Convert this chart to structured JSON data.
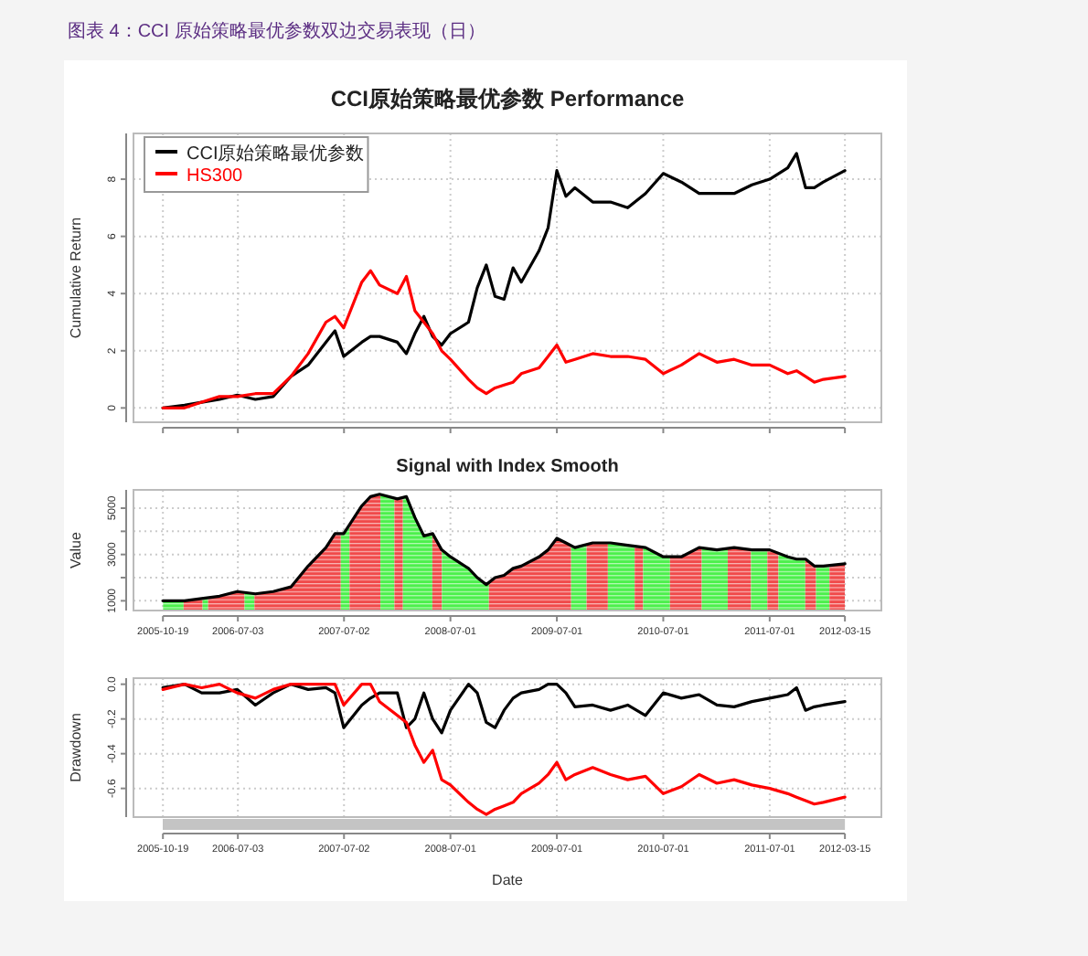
{
  "chart_data": [
    {
      "type": "line",
      "title": "CCI原始策略最优参数 Performance",
      "ylabel": "Cumulative Return",
      "annotations": [
        "图表 4：CCI 原始策略最优参数双边交易表现（日）"
      ],
      "x": [
        "2005-10-19",
        "2006-01",
        "2006-03",
        "2006-05",
        "2006-07",
        "2006-09",
        "2006-11",
        "2007-01",
        "2007-03",
        "2007-05",
        "2007-06",
        "2007-07",
        "2007-09",
        "2007-10",
        "2007-11",
        "2008-01",
        "2008-02",
        "2008-03",
        "2008-04",
        "2008-05",
        "2008-06",
        "2008-07",
        "2008-09",
        "2008-10",
        "2008-11",
        "2008-12",
        "2009-01",
        "2009-02",
        "2009-03",
        "2009-05",
        "2009-06",
        "2009-07",
        "2009-08",
        "2009-09",
        "2009-11",
        "2010-01",
        "2010-03",
        "2010-05",
        "2010-07",
        "2010-09",
        "2010-11",
        "2011-01",
        "2011-03",
        "2011-05",
        "2011-07",
        "2011-09",
        "2011-10",
        "2011-11",
        "2011-12",
        "2012-01",
        "2012-03-15"
      ],
      "series": [
        {
          "name": "CCI原始策略最优参数",
          "color": "#000000",
          "values": [
            0,
            0.1,
            0.2,
            0.3,
            0.45,
            0.3,
            0.4,
            1.1,
            1.5,
            2.3,
            2.7,
            1.8,
            2.3,
            2.5,
            2.5,
            2.3,
            1.9,
            2.6,
            3.2,
            2.5,
            2.2,
            2.6,
            3.0,
            4.2,
            5.0,
            3.9,
            3.8,
            4.9,
            4.4,
            5.5,
            6.3,
            8.3,
            7.4,
            7.7,
            7.2,
            7.2,
            7.0,
            7.5,
            8.2,
            7.9,
            7.5,
            7.5,
            7.5,
            7.8,
            8.0,
            8.4,
            8.9,
            7.7,
            7.7,
            7.9,
            8.3
          ]
        },
        {
          "name": "HS300",
          "color": "#ff0000",
          "values": [
            0,
            0,
            0.2,
            0.4,
            0.4,
            0.5,
            0.5,
            1.1,
            1.9,
            3.0,
            3.2,
            2.8,
            4.4,
            4.8,
            4.3,
            4.0,
            4.6,
            3.4,
            3.0,
            2.6,
            2.0,
            1.7,
            1.0,
            0.7,
            0.5,
            0.7,
            0.8,
            0.9,
            1.2,
            1.4,
            1.8,
            2.2,
            1.6,
            1.7,
            1.9,
            1.8,
            1.8,
            1.7,
            1.2,
            1.5,
            1.9,
            1.6,
            1.7,
            1.5,
            1.5,
            1.2,
            1.3,
            1.1,
            0.9,
            1.0,
            1.1
          ]
        }
      ],
      "xlim": [
        "2005-07-10",
        "2012-07-18"
      ],
      "xticks": [
        "2005-10-19",
        "2006-07-03",
        "2007-07-02",
        "2008-07-01",
        "2009-07-01",
        "2010-07-01",
        "2011-07-01",
        "2012-03-15"
      ],
      "ylim": [
        -0.5,
        9.6
      ],
      "yticks": [
        0,
        2,
        4,
        6,
        8
      ],
      "tick_labels": "y",
      "grid": true,
      "legend": "top left"
    },
    {
      "type": "area",
      "title": "Signal with Index Smooth",
      "ylabel": "Value",
      "x": [
        "2005-10-19",
        "2006-01",
        "2006-03",
        "2006-05",
        "2006-07",
        "2006-09",
        "2006-11",
        "2007-01",
        "2007-03",
        "2007-05",
        "2007-06",
        "2007-07",
        "2007-09",
        "2007-10",
        "2007-11",
        "2008-01",
        "2008-02",
        "2008-03",
        "2008-04",
        "2008-05",
        "2008-06",
        "2008-07",
        "2008-09",
        "2008-10",
        "2008-11",
        "2008-12",
        "2009-01",
        "2009-02",
        "2009-03",
        "2009-05",
        "2009-06",
        "2009-07",
        "2009-08",
        "2009-09",
        "2009-11",
        "2010-01",
        "2010-03",
        "2010-05",
        "2010-07",
        "2010-09",
        "2010-11",
        "2011-01",
        "2011-03",
        "2011-05",
        "2011-07",
        "2011-09",
        "2011-10",
        "2011-11",
        "2011-12",
        "2012-01",
        "2012-03-15"
      ],
      "series": [
        {
          "color": "#000000",
          "values": [
            1000,
            1000,
            1100,
            1200,
            1400,
            1300,
            1400,
            1600,
            2500,
            3300,
            3900,
            3900,
            5100,
            5500,
            5600,
            5400,
            5500,
            4600,
            3800,
            3900,
            3200,
            2900,
            2400,
            2000,
            1700,
            2000,
            2100,
            2400,
            2500,
            2900,
            3200,
            3700,
            3500,
            3300,
            3500,
            3500,
            3400,
            3300,
            2900,
            2900,
            3300,
            3200,
            3300,
            3200,
            3200,
            2900,
            2800,
            2800,
            2500,
            2500,
            2600
          ]
        }
      ],
      "bands": [
        {
          "axis": "x",
          "from": "2005-10-19",
          "to": "2005-12-29",
          "color": "#4cf04c"
        },
        {
          "axis": "x",
          "from": "2005-12-29",
          "to": "2006-03-04",
          "color": "#f04a4a"
        },
        {
          "axis": "x",
          "from": "2006-03-04",
          "to": "2006-03-23",
          "color": "#4cf04c"
        },
        {
          "axis": "x",
          "from": "2006-03-23",
          "to": "2006-07-26",
          "color": "#f04a4a"
        },
        {
          "axis": "x",
          "from": "2006-07-26",
          "to": "2006-08-29",
          "color": "#4cf04c"
        },
        {
          "axis": "x",
          "from": "2006-08-29",
          "to": "2007-06-21",
          "color": "#f04a4a"
        },
        {
          "axis": "x",
          "from": "2007-06-21",
          "to": "2007-07-21",
          "color": "#4cf04c"
        },
        {
          "axis": "x",
          "from": "2007-07-21",
          "to": "2007-11-04",
          "color": "#f04a4a"
        },
        {
          "axis": "x",
          "from": "2007-11-04",
          "to": "2007-12-22",
          "color": "#4cf04c"
        },
        {
          "axis": "x",
          "from": "2007-12-22",
          "to": "2008-01-20",
          "color": "#f04a4a"
        },
        {
          "axis": "x",
          "from": "2008-01-20",
          "to": "2008-04-30",
          "color": "#4cf04c"
        },
        {
          "axis": "x",
          "from": "2008-04-30",
          "to": "2008-06-02",
          "color": "#f04a4a"
        },
        {
          "axis": "x",
          "from": "2008-06-02",
          "to": "2008-11-10",
          "color": "#4cf04c"
        },
        {
          "axis": "x",
          "from": "2008-11-10",
          "to": "2009-08-19",
          "color": "#f04a4a"
        },
        {
          "axis": "x",
          "from": "2009-08-19",
          "to": "2009-10-11",
          "color": "#4cf04c"
        },
        {
          "axis": "x",
          "from": "2009-10-11",
          "to": "2009-12-23",
          "color": "#f04a4a"
        },
        {
          "axis": "x",
          "from": "2009-12-23",
          "to": "2010-03-25",
          "color": "#4cf04c"
        },
        {
          "axis": "x",
          "from": "2010-03-25",
          "to": "2010-04-23",
          "color": "#f04a4a"
        },
        {
          "axis": "x",
          "from": "2010-04-23",
          "to": "2010-07-24",
          "color": "#4cf04c"
        },
        {
          "axis": "x",
          "from": "2010-07-24",
          "to": "2010-11-10",
          "color": "#f04a4a"
        },
        {
          "axis": "x",
          "from": "2010-11-10",
          "to": "2011-02-07",
          "color": "#4cf04c"
        },
        {
          "axis": "x",
          "from": "2011-02-07",
          "to": "2011-04-28",
          "color": "#f04a4a"
        },
        {
          "axis": "x",
          "from": "2011-04-28",
          "to": "2011-06-23",
          "color": "#4cf04c"
        },
        {
          "axis": "x",
          "from": "2011-06-23",
          "to": "2011-07-31",
          "color": "#f04a4a"
        },
        {
          "axis": "x",
          "from": "2011-07-31",
          "to": "2011-10-31",
          "color": "#4cf04c"
        },
        {
          "axis": "x",
          "from": "2011-10-31",
          "to": "2011-12-07",
          "color": "#f04a4a"
        },
        {
          "axis": "x",
          "from": "2011-12-07",
          "to": "2012-01-22",
          "color": "#4cf04c"
        },
        {
          "axis": "x",
          "from": "2012-01-22",
          "to": "2012-03-15",
          "color": "#f04a4a"
        }
      ],
      "xlim": [
        "2005-07-10",
        "2012-07-18"
      ],
      "xticks": [
        "2005-10-19",
        "2006-07-03",
        "2007-07-02",
        "2008-07-01",
        "2009-07-01",
        "2010-07-01",
        "2011-07-01",
        "2012-03-15"
      ],
      "ylim": [
        580,
        5790
      ],
      "yticks": [
        1000,
        {
          "value": 2000,
          "label": null
        },
        3000,
        {
          "value": 4000,
          "label": null
        },
        5000
      ],
      "grid": true
    },
    {
      "type": "line",
      "xlabel": "Date",
      "ylabel": "Drawdown",
      "x": [
        "2005-10-19",
        "2006-01",
        "2006-03",
        "2006-05",
        "2006-07",
        "2006-09",
        "2006-11",
        "2007-01",
        "2007-03",
        "2007-05",
        "2007-06",
        "2007-07",
        "2007-09",
        "2007-10",
        "2007-11",
        "2008-01",
        "2008-02",
        "2008-03",
        "2008-04",
        "2008-05",
        "2008-06",
        "2008-07",
        "2008-09",
        "2008-10",
        "2008-11",
        "2008-12",
        "2009-01",
        "2009-02",
        "2009-03",
        "2009-05",
        "2009-06",
        "2009-07",
        "2009-08",
        "2009-09",
        "2009-11",
        "2010-01",
        "2010-03",
        "2010-05",
        "2010-07",
        "2010-09",
        "2010-11",
        "2011-01",
        "2011-03",
        "2011-05",
        "2011-07",
        "2011-09",
        "2011-10",
        "2011-11",
        "2011-12",
        "2012-01",
        "2012-03-15"
      ],
      "series": [
        {
          "color": "#000000",
          "values": [
            -0.02,
            0,
            -0.05,
            -0.05,
            -0.03,
            -0.12,
            -0.05,
            0,
            -0.03,
            -0.02,
            -0.05,
            -0.25,
            -0.12,
            -0.08,
            -0.05,
            -0.05,
            -0.25,
            -0.2,
            -0.05,
            -0.2,
            -0.28,
            -0.15,
            0,
            -0.05,
            -0.22,
            -0.25,
            -0.15,
            -0.08,
            -0.05,
            -0.03,
            0,
            0,
            -0.05,
            -0.13,
            -0.12,
            -0.15,
            -0.12,
            -0.18,
            -0.05,
            -0.08,
            -0.06,
            -0.12,
            -0.13,
            -0.1,
            -0.08,
            -0.06,
            -0.02,
            -0.15,
            -0.13,
            -0.12,
            -0.1
          ]
        },
        {
          "color": "#ff0000",
          "values": [
            -0.03,
            0,
            -0.02,
            0,
            -0.05,
            -0.08,
            -0.03,
            0,
            0,
            0,
            0,
            -0.12,
            0,
            0,
            -0.1,
            -0.18,
            -0.22,
            -0.35,
            -0.45,
            -0.38,
            -0.55,
            -0.58,
            -0.68,
            -0.72,
            -0.75,
            -0.72,
            -0.7,
            -0.68,
            -0.63,
            -0.57,
            -0.52,
            -0.45,
            -0.55,
            -0.52,
            -0.48,
            -0.52,
            -0.55,
            -0.53,
            -0.63,
            -0.59,
            -0.52,
            -0.57,
            -0.55,
            -0.58,
            -0.6,
            -0.63,
            -0.65,
            -0.67,
            -0.69,
            -0.68,
            -0.65
          ]
        }
      ],
      "xlim": [
        "2005-07-10",
        "2012-07-18"
      ],
      "xticks": [
        "2005-10-19",
        "2006-07-03",
        "2007-07-02",
        "2008-07-01",
        "2009-07-01",
        "2010-07-01",
        "2011-07-01",
        "2012-03-15"
      ],
      "ylim": [
        -0.765,
        0.035
      ],
      "yticks": [
        {
          "value": 0,
          "label": "0.0"
        },
        {
          "value": -0.2,
          "label": "-0.2"
        },
        {
          "value": -0.4,
          "label": "-0.4"
        },
        {
          "value": -0.6,
          "label": "-0.6"
        }
      ],
      "grid": true
    }
  ]
}
